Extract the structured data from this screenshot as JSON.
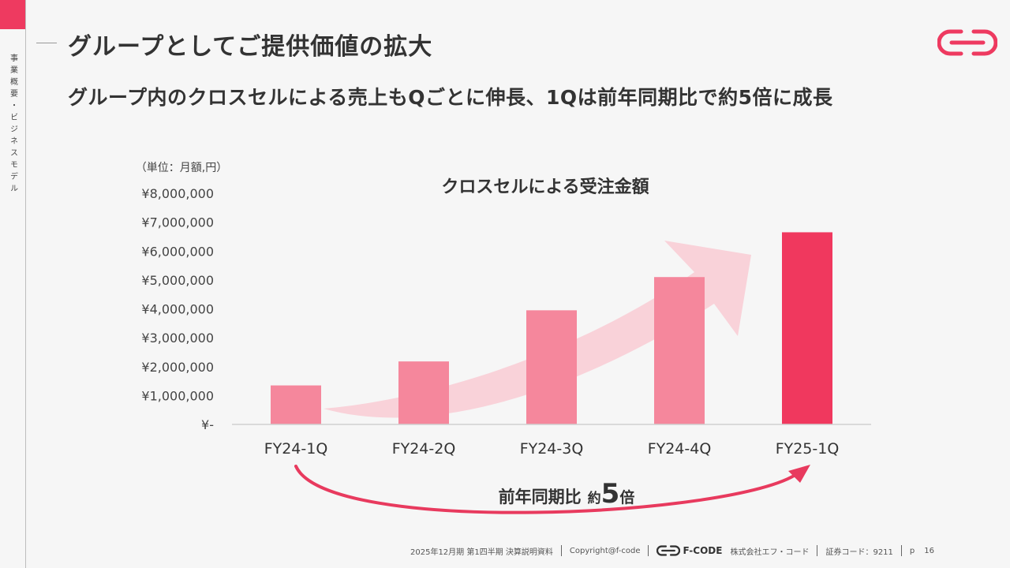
{
  "sidebar": {
    "section_label": "事業概要・ビジネスモデル"
  },
  "header": {
    "title": "グループとしてご提供価値の拡大",
    "subtitle": "グループ内のクロスセルによる売上もQごとに伸長、1Qは前年同期比で約5倍に成長"
  },
  "chart_data": {
    "type": "bar",
    "title": "クロスセルによる受注金額",
    "unit_label": "（単位：月額,円）",
    "categories": [
      "FY24-1Q",
      "FY24-2Q",
      "FY24-3Q",
      "FY24-4Q",
      "FY25-1Q"
    ],
    "values": [
      1350000,
      2180000,
      3950000,
      5100000,
      6650000
    ],
    "ylim": [
      0,
      8000000
    ],
    "yticks": [
      0,
      1000000,
      2000000,
      3000000,
      4000000,
      5000000,
      6000000,
      7000000,
      8000000
    ],
    "ytick_labels": [
      "¥-",
      "¥1,000,000",
      "¥2,000,000",
      "¥3,000,000",
      "¥4,000,000",
      "¥5,000,000",
      "¥6,000,000",
      "¥7,000,000",
      "¥8,000,000"
    ],
    "bar_color": "#f5879c",
    "highlight_color": "#f0385e",
    "trend_arrow_color": "#f9cbd4",
    "comparison": {
      "label": "前年同期比",
      "approx": "約",
      "multiplier": "5",
      "unit": "倍",
      "arrow_color": "#e83a5e"
    }
  },
  "footer": {
    "report": "2025年12月期 第1四半期 決算説明資料",
    "copyright": "Copyright@f-code",
    "brand": "F-CODE",
    "company": "株式会社エフ・コード",
    "code": "証券コード：9211",
    "page_prefix": "p",
    "page_number": "16"
  },
  "colors": {
    "accent": "#ee3a60",
    "background": "#f6f6f6"
  }
}
